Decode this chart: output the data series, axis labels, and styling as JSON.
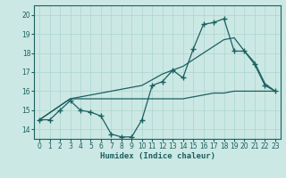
{
  "xlabel": "Humidex (Indice chaleur)",
  "xlim": [
    -0.5,
    23.5
  ],
  "ylim": [
    13.5,
    20.5
  ],
  "yticks": [
    14,
    15,
    16,
    17,
    18,
    19,
    20
  ],
  "xticks": [
    0,
    1,
    2,
    3,
    4,
    5,
    6,
    7,
    8,
    9,
    10,
    11,
    12,
    13,
    14,
    15,
    16,
    17,
    18,
    19,
    20,
    21,
    22,
    23
  ],
  "bg_color": "#cce8e4",
  "grid_color": "#b0d8d2",
  "line_color": "#1a6060",
  "line1_x": [
    0,
    1,
    2,
    3,
    4,
    5,
    6,
    7,
    8,
    9,
    10,
    11,
    12,
    13,
    14,
    15,
    16,
    17,
    18,
    19,
    20,
    21,
    22,
    23
  ],
  "line1_y": [
    14.5,
    14.5,
    15.0,
    15.5,
    15.0,
    14.9,
    14.7,
    13.75,
    13.6,
    13.6,
    14.5,
    16.3,
    16.5,
    17.1,
    16.7,
    18.2,
    19.5,
    19.6,
    19.8,
    18.1,
    18.1,
    17.4,
    16.3,
    16.0
  ],
  "line2_x": [
    0,
    3,
    9,
    13,
    14,
    15,
    16,
    17,
    18,
    19,
    20,
    23
  ],
  "line2_y": [
    14.5,
    15.6,
    15.6,
    15.6,
    15.6,
    15.7,
    15.8,
    15.9,
    15.9,
    16.0,
    16.0,
    16.0
  ],
  "line3_x": [
    0,
    3,
    10,
    12,
    13,
    14,
    16,
    18,
    19,
    20,
    21,
    22,
    23
  ],
  "line3_y": [
    14.5,
    15.6,
    16.3,
    16.9,
    17.1,
    17.3,
    18.0,
    18.7,
    18.8,
    18.1,
    17.5,
    16.4,
    16.0
  ]
}
